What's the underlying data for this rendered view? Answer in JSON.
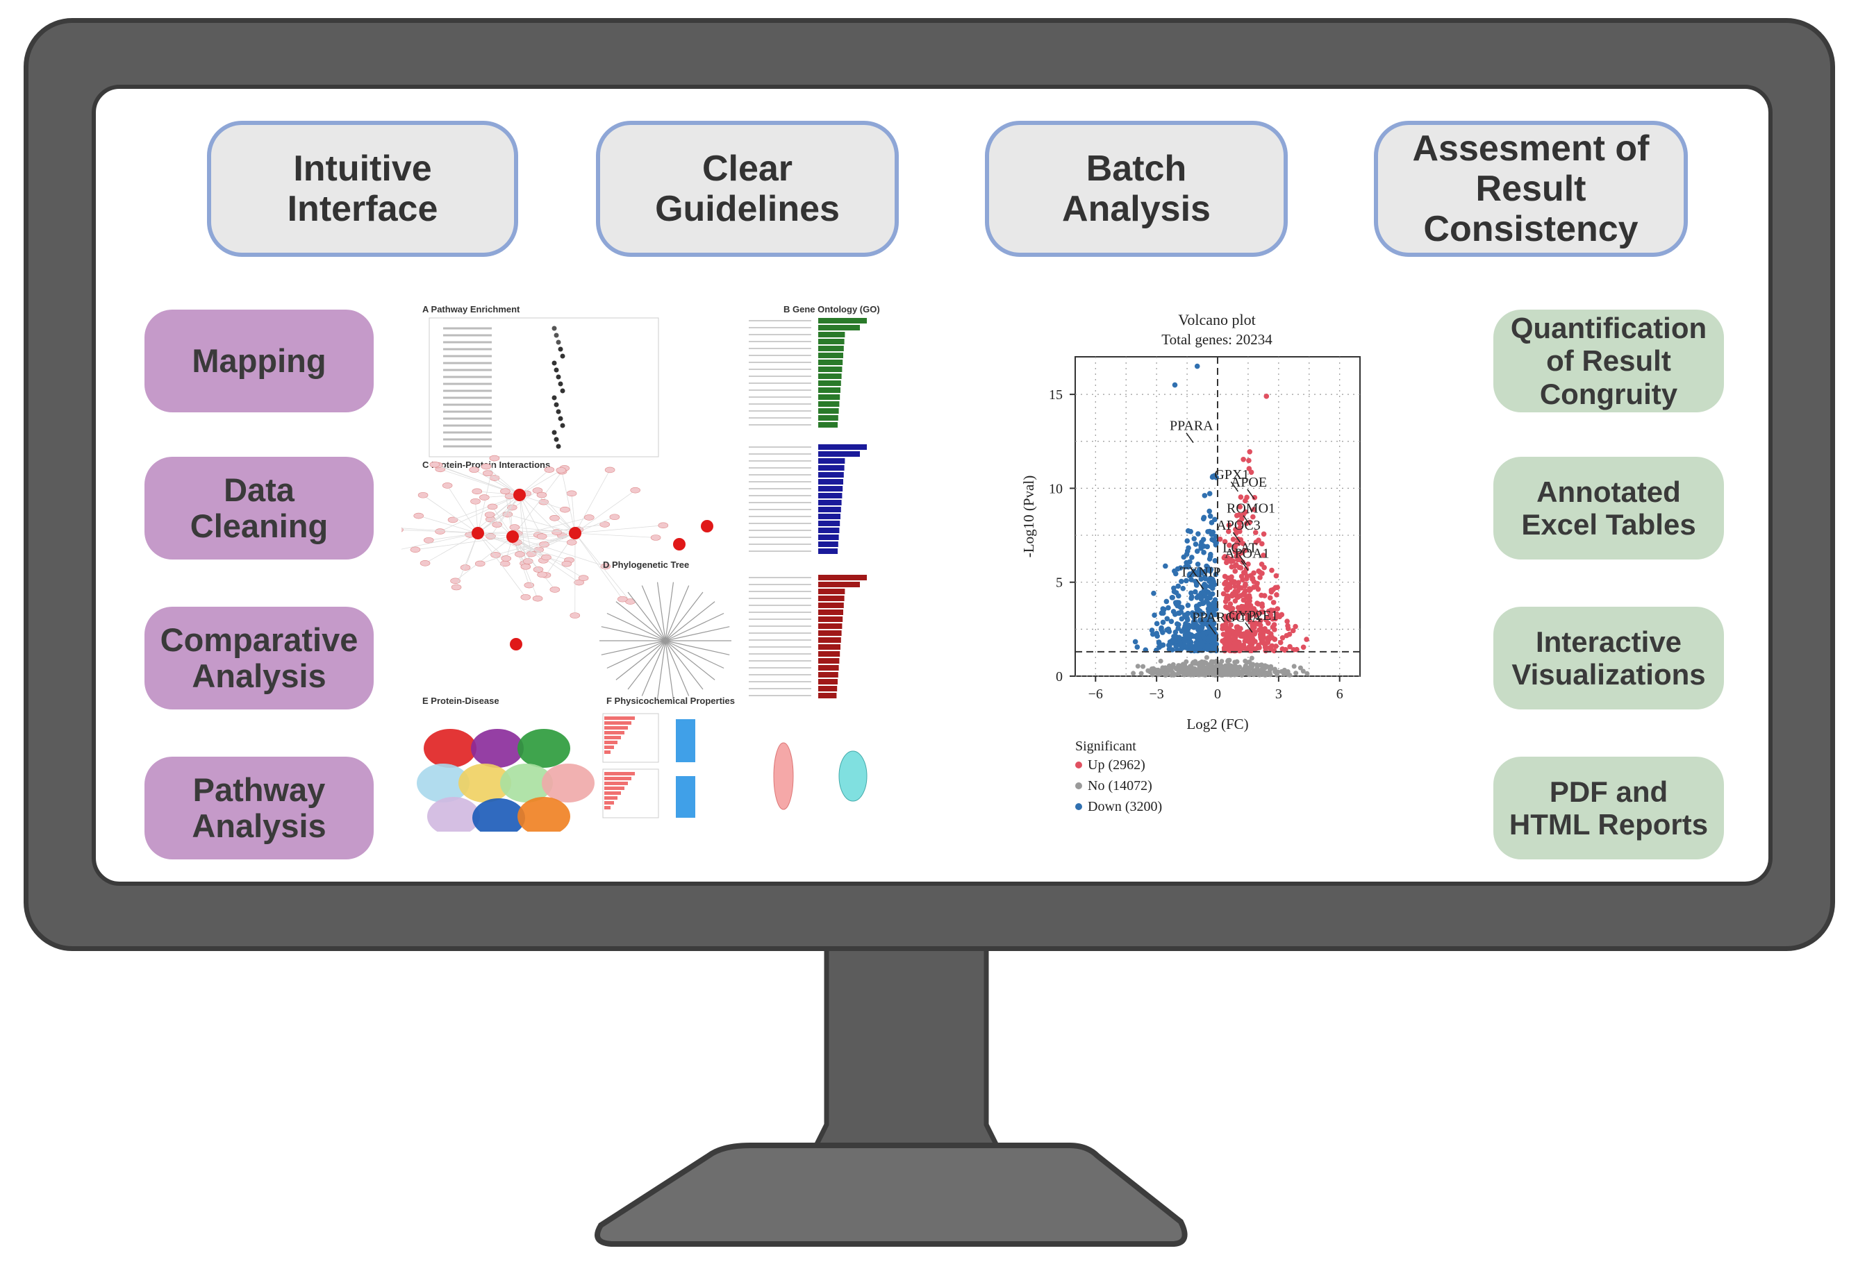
{
  "top_features": [
    "Intuitive\nInterface",
    "Clear\nGuidelines",
    "Batch\nAnalysis",
    "Assesment of\nResult\nConsistency"
  ],
  "left_features": [
    "Mapping",
    "Data\nCleaning",
    "Comparative\nAnalysis",
    "Pathway\nAnalysis"
  ],
  "right_features": [
    "Quantification\nof Result\nCongruity",
    "Annotated\nExcel Tables",
    "Interactive\nVisualizations",
    "PDF and\nHTML Reports"
  ],
  "collage": {
    "panel_a": "A  Pathway Enrichment",
    "panel_b": "B  Gene Ontology (GO)",
    "panel_c": "C  Protein-Protein Interactions",
    "panel_d": "D  Phylogenetic Tree",
    "panel_e": "E  Protein-Disease",
    "panel_f": "F  Physicochemical Properties"
  },
  "chart_data": {
    "type": "scatter",
    "title": "Volcano plot",
    "subtitle": "Total genes: 20234",
    "xlabel": "Log2 (FC)",
    "ylabel": "-Log10 (Pval)",
    "xlim": [
      -7,
      7
    ],
    "ylim": [
      0,
      17
    ],
    "x_ticks": [
      -6,
      -3,
      0,
      3,
      6
    ],
    "y_ticks": [
      0,
      5,
      10,
      15
    ],
    "threshold_x": 0,
    "threshold_y": 1.3,
    "grid": true,
    "legend_title": "Significant",
    "legend_position": "bottom-left",
    "series": [
      {
        "name": "Up (2962)",
        "color": "#e05060"
      },
      {
        "name": "No (14072)",
        "color": "#9a9a9a"
      },
      {
        "name": "Down (3200)",
        "color": "#3070b0"
      }
    ],
    "labels": [
      {
        "text": "PPARA",
        "x": -1.4,
        "y": 12.8
      },
      {
        "text": "GPX1",
        "x": 0.8,
        "y": 10.2
      },
      {
        "text": "APOE",
        "x": 1.6,
        "y": 9.8
      },
      {
        "text": "ROMO1",
        "x": 1.4,
        "y": 8.4
      },
      {
        "text": "APOC3",
        "x": 0.9,
        "y": 7.5
      },
      {
        "text": "LCAT",
        "x": 1.2,
        "y": 6.3
      },
      {
        "text": "APOA1",
        "x": 1.3,
        "y": 6.0
      },
      {
        "text": "TXNIP",
        "x": -0.9,
        "y": 5.0
      },
      {
        "text": "PPARGC1A",
        "x": -0.3,
        "y": 2.6
      },
      {
        "text": "CYP2E1",
        "x": 1.5,
        "y": 2.7
      }
    ]
  }
}
